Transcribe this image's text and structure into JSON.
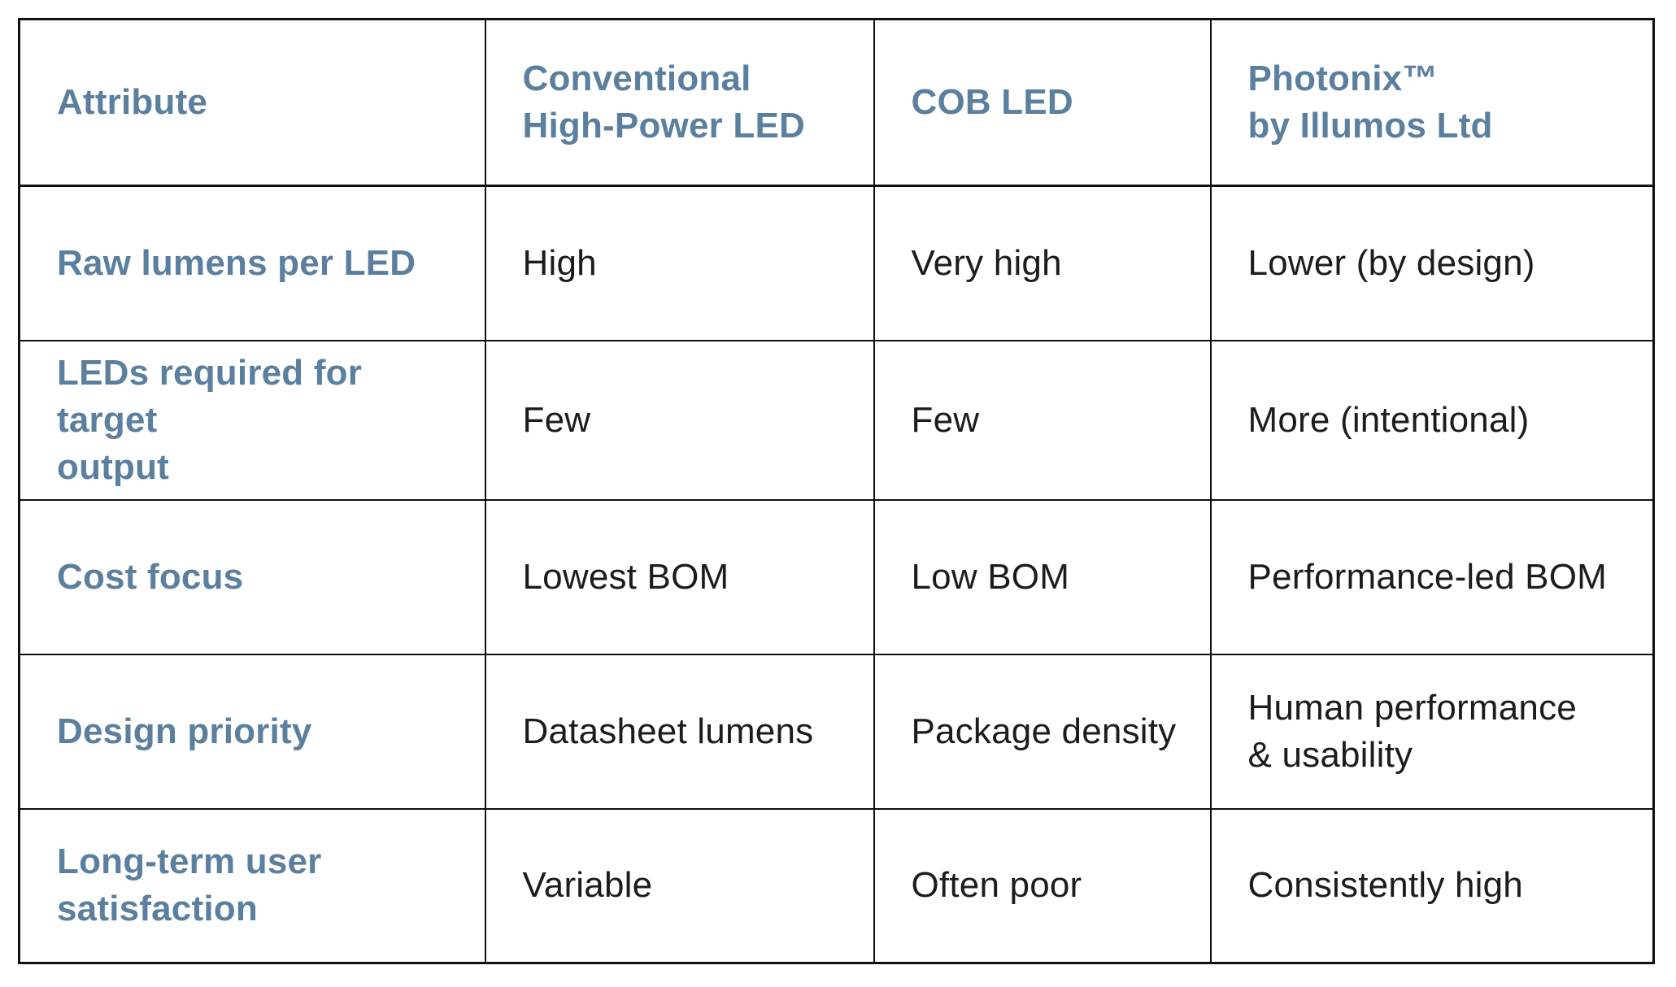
{
  "table": {
    "accent_color": "#5b7f9e",
    "text_color": "#1c1c1c",
    "border_color": "#101010",
    "headers": [
      "Attribute",
      "Conventional\nHigh-Power LED",
      "COB LED",
      "Photonix™\nby Illumos Ltd"
    ],
    "rows": [
      {
        "cells": [
          "Raw lumens per LED",
          "High",
          "Very high",
          "Lower (by design)"
        ]
      },
      {
        "cells": [
          "LEDs required for target\noutput",
          "Few",
          "Few",
          "More (intentional)"
        ]
      },
      {
        "cells": [
          "Cost focus",
          "Lowest BOM",
          "Low BOM",
          "Performance-led BOM"
        ]
      },
      {
        "cells": [
          "Design priority",
          "Datasheet lumens",
          "Package density",
          "Human performance\n& usability"
        ]
      },
      {
        "cells": [
          "Long-term user\nsatisfaction",
          "Variable",
          "Often poor",
          "Consistently high"
        ]
      }
    ]
  }
}
